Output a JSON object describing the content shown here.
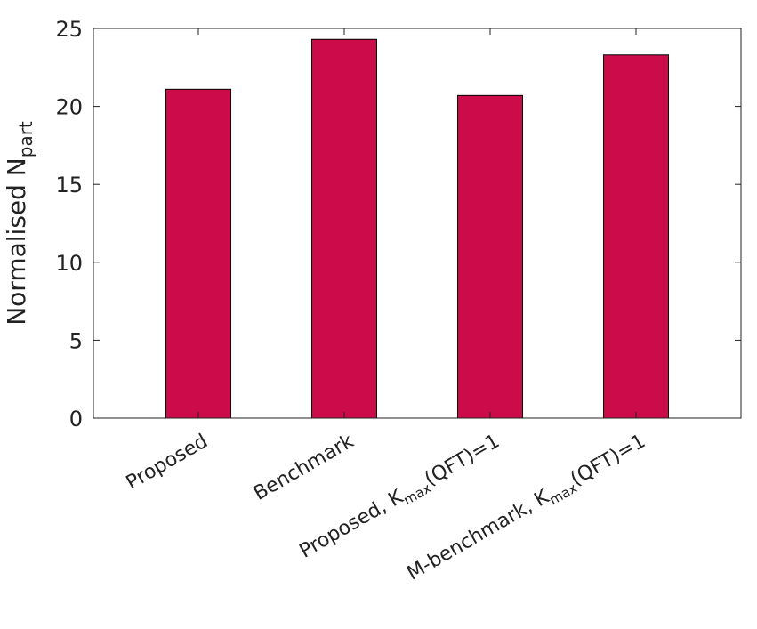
{
  "chart_data": {
    "type": "bar",
    "categories": [
      {
        "main": "Proposed",
        "sub": "",
        "suffix": ""
      },
      {
        "main": "Benchmark",
        "sub": "",
        "suffix": ""
      },
      {
        "main": "Proposed, K",
        "sub": "max",
        "suffix": "(QFT)=1"
      },
      {
        "main": "M-benchmark, K",
        "sub": "max",
        "suffix": "(QFT)=1"
      }
    ],
    "values": [
      21.1,
      24.3,
      20.7,
      23.3
    ],
    "ylabel": {
      "main": "Normalised N",
      "sub": "part"
    },
    "xlabel": "",
    "ylim": [
      0,
      25
    ],
    "yticks": [
      0,
      5,
      10,
      15,
      20,
      25
    ],
    "bar_color": "#cc0c4a",
    "grid": false
  }
}
